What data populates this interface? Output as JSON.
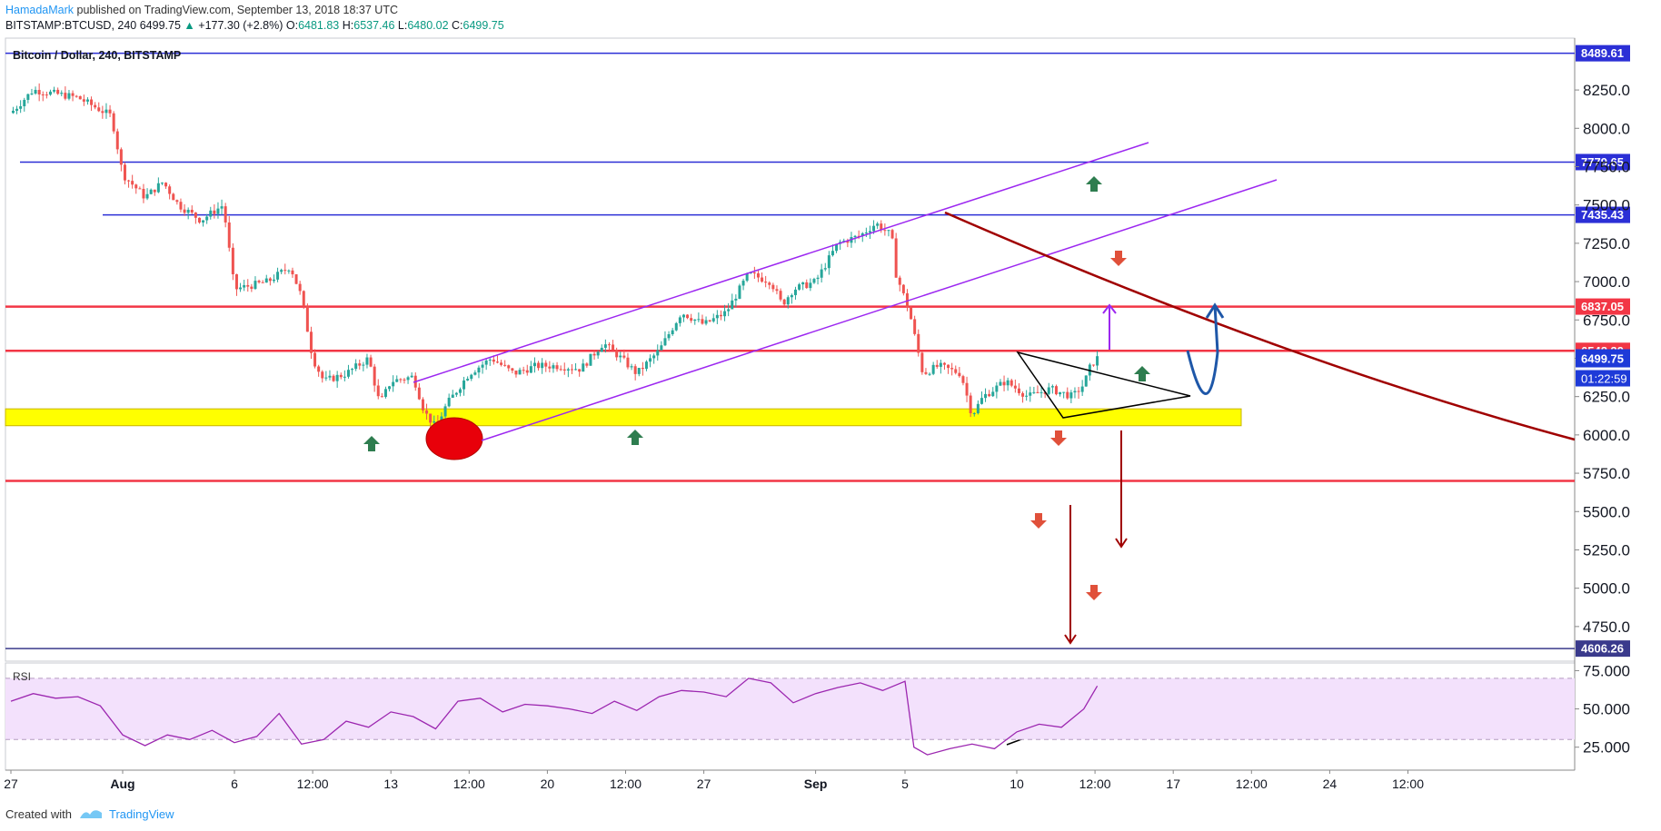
{
  "header": {
    "author": "HamadaMark",
    "published_text": "published on TradingView.com, September 13, 2018 18:37 UTC",
    "symbol": "BITSTAMP:BTCUSD, 240",
    "last_price": "6499.75",
    "change": "+177.30 (+2.8%)",
    "open_label": "O:",
    "open": "6481.83",
    "high_label": "H:",
    "high": "6537.46",
    "low_label": "L:",
    "low": "6480.02",
    "close_label": "C:",
    "close": "6499.75"
  },
  "chart_title": "Bitcoin / Dollar, 240, BITSTAMP",
  "footer": {
    "created_with": "Created with",
    "brand": "TradingView"
  },
  "colors": {
    "up": "#26a69a",
    "down": "#ef5350",
    "blue_level": "#2b2fd6",
    "red_level": "#f23645",
    "zone": "#ffff00",
    "channel": "#9c27f0",
    "trendline": "#a00000",
    "rsi_band": "#f3e1fc",
    "rsi_line": "#9c27b0"
  },
  "chart_data": {
    "type": "candlestick",
    "y_range": [
      4530,
      8600
    ],
    "y_ticks": [
      4750,
      5000,
      5250,
      5500,
      5750,
      6000,
      6250,
      6500,
      6750,
      7000,
      7250,
      7500,
      7750,
      8000,
      8250
    ],
    "x_range_days": [
      0,
      70
    ],
    "x_ticks": [
      {
        "label": "27",
        "d": 0
      },
      {
        "label": "Aug",
        "d": 5
      },
      {
        "label": "6",
        "d": 10
      },
      {
        "label": "12:00",
        "d": 13.5
      },
      {
        "label": "13",
        "d": 17
      },
      {
        "label": "12:00",
        "d": 20.5
      },
      {
        "label": "20",
        "d": 24
      },
      {
        "label": "12:00",
        "d": 27.5
      },
      {
        "label": "27",
        "d": 31
      },
      {
        "label": "Sep",
        "d": 36
      },
      {
        "label": "5",
        "d": 40
      },
      {
        "label": "10",
        "d": 45
      },
      {
        "label": "12:00",
        "d": 48.5
      },
      {
        "label": "17",
        "d": 52
      },
      {
        "label": "12:00",
        "d": 55.5
      },
      {
        "label": "24",
        "d": 59
      },
      {
        "label": "12:00",
        "d": 62.5
      }
    ],
    "price_path": [
      [
        0,
        8100
      ],
      [
        1,
        8250
      ],
      [
        3,
        8200
      ],
      [
        4.5,
        8080
      ],
      [
        5,
        7700
      ],
      [
        6,
        7550
      ],
      [
        6.8,
        7650
      ],
      [
        7.5,
        7500
      ],
      [
        8.5,
        7400
      ],
      [
        9.5,
        7500
      ],
      [
        10,
        6950
      ],
      [
        11.5,
        7000
      ],
      [
        12.5,
        7100
      ],
      [
        13,
        6900
      ],
      [
        13.5,
        6500
      ],
      [
        14,
        6350
      ],
      [
        15,
        6400
      ],
      [
        16,
        6500
      ],
      [
        16.5,
        6200
      ],
      [
        17,
        6350
      ],
      [
        18,
        6380
      ],
      [
        18.5,
        6150
      ],
      [
        19,
        6050
      ],
      [
        19.5,
        6200
      ],
      [
        20.5,
        6400
      ],
      [
        21.5,
        6500
      ],
      [
        22.5,
        6400
      ],
      [
        23.5,
        6450
      ],
      [
        24.5,
        6450
      ],
      [
        25.5,
        6430
      ],
      [
        26.5,
        6600
      ],
      [
        27.3,
        6500
      ],
      [
        28,
        6400
      ],
      [
        29,
        6550
      ],
      [
        30,
        6800
      ],
      [
        31,
        6720
      ],
      [
        32,
        6800
      ],
      [
        33,
        7050
      ],
      [
        34,
        7000
      ],
      [
        34.5,
        6850
      ],
      [
        35,
        6950
      ],
      [
        36,
        7000
      ],
      [
        37,
        7250
      ],
      [
        38,
        7300
      ],
      [
        38.7,
        7380
      ],
      [
        39.4,
        7300
      ],
      [
        39.6,
        7050
      ],
      [
        40.2,
        6800
      ],
      [
        40.8,
        6400
      ],
      [
        41.5,
        6450
      ],
      [
        42.5,
        6400
      ],
      [
        43,
        6130
      ],
      [
        43.5,
        6250
      ],
      [
        44.5,
        6350
      ],
      [
        45.5,
        6250
      ],
      [
        46.5,
        6300
      ],
      [
        47.5,
        6250
      ],
      [
        48,
        6330
      ],
      [
        48.3,
        6450
      ],
      [
        48.6,
        6500
      ]
    ],
    "levels": [
      {
        "value": 8489.61,
        "label": "8489.61",
        "kind": "blue"
      },
      {
        "value": 7779.65,
        "label": "7779.65",
        "kind": "blue"
      },
      {
        "value": 7435.43,
        "label": "7435.43",
        "kind": "blue"
      },
      {
        "value": 6837.05,
        "label": "6837.05",
        "kind": "red"
      },
      {
        "value": 6548.39,
        "label": "6548.39",
        "kind": "red"
      },
      {
        "value": 5700,
        "label": "",
        "kind": "red"
      },
      {
        "value": 4606.26,
        "label": "4606.26",
        "kind": "navy"
      }
    ],
    "current_price": {
      "value": 6499.75,
      "label": "6499.75",
      "countdown": "01:22:59"
    },
    "support_zone": [
      6060,
      6170
    ],
    "rsi": {
      "label": "RSI",
      "range": [
        10,
        80
      ],
      "ticks": [
        {
          "value": 75,
          "label": "75.000"
        },
        {
          "value": 50,
          "label": "50.000"
        },
        {
          "value": 25,
          "label": "25.000"
        }
      ],
      "band": [
        30,
        70
      ],
      "path": [
        [
          0,
          55
        ],
        [
          1,
          60
        ],
        [
          2,
          57
        ],
        [
          3,
          58
        ],
        [
          4,
          52
        ],
        [
          5,
          33
        ],
        [
          6,
          26
        ],
        [
          7,
          33
        ],
        [
          8,
          30
        ],
        [
          9,
          36
        ],
        [
          10,
          28
        ],
        [
          11,
          32
        ],
        [
          12,
          47
        ],
        [
          13,
          27
        ],
        [
          14,
          30
        ],
        [
          15,
          42
        ],
        [
          16,
          38
        ],
        [
          17,
          48
        ],
        [
          18,
          45
        ],
        [
          19,
          37
        ],
        [
          20,
          55
        ],
        [
          21,
          57
        ],
        [
          22,
          48
        ],
        [
          23,
          53
        ],
        [
          24,
          52
        ],
        [
          25,
          50
        ],
        [
          26,
          47
        ],
        [
          27,
          55
        ],
        [
          28,
          49
        ],
        [
          29,
          58
        ],
        [
          30,
          62
        ],
        [
          31,
          61
        ],
        [
          32,
          58
        ],
        [
          33,
          70
        ],
        [
          34,
          67
        ],
        [
          35,
          54
        ],
        [
          36,
          60
        ],
        [
          37,
          64
        ],
        [
          38,
          67
        ],
        [
          39,
          62
        ],
        [
          40,
          68
        ],
        [
          40.4,
          25
        ],
        [
          41,
          20
        ],
        [
          42,
          24
        ],
        [
          43,
          27
        ],
        [
          44,
          24
        ],
        [
          45,
          35
        ],
        [
          46,
          40
        ],
        [
          47,
          38
        ],
        [
          48,
          50
        ],
        [
          48.6,
          65
        ]
      ]
    }
  }
}
